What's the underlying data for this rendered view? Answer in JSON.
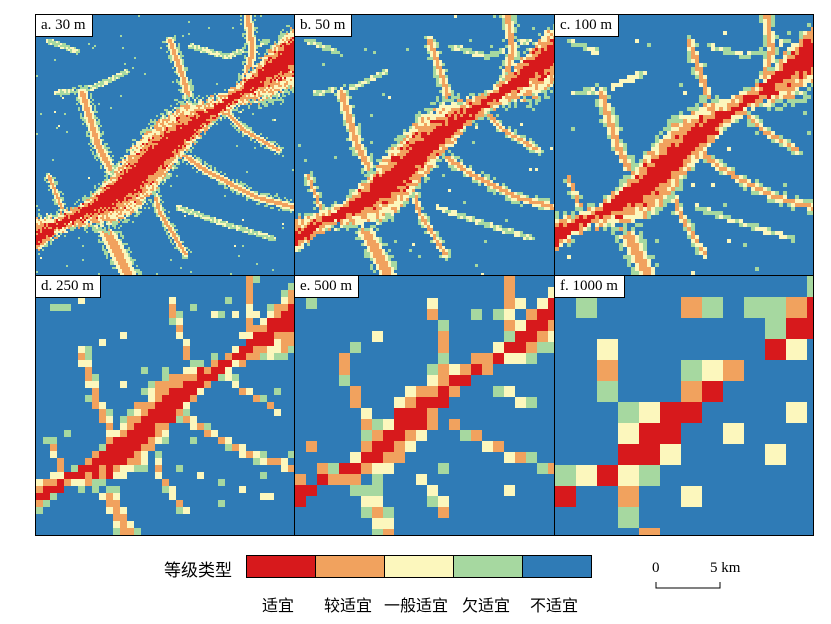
{
  "panels": [
    {
      "label": "a. 30 m",
      "cell": 2
    },
    {
      "label": "b. 50 m",
      "cell": 3
    },
    {
      "label": "c. 100 m",
      "cell": 4
    },
    {
      "label": "d. 250 m",
      "cell": 7
    },
    {
      "label": "e. 500 m",
      "cell": 11
    },
    {
      "label": "f. 1000 m",
      "cell": 21
    }
  ],
  "legend": {
    "title": "等级类型",
    "classes": [
      {
        "label": "适宜",
        "color": "#d7191c"
      },
      {
        "label": "较适宜",
        "color": "#f1a25e"
      },
      {
        "label": "一般适宜",
        "color": "#fcf7bd"
      },
      {
        "label": "欠适宜",
        "color": "#a6d8a0"
      },
      {
        "label": "不适宜",
        "color": "#2f7bb6"
      }
    ]
  },
  "scalebar": {
    "start": "0",
    "end": "5 km"
  }
}
